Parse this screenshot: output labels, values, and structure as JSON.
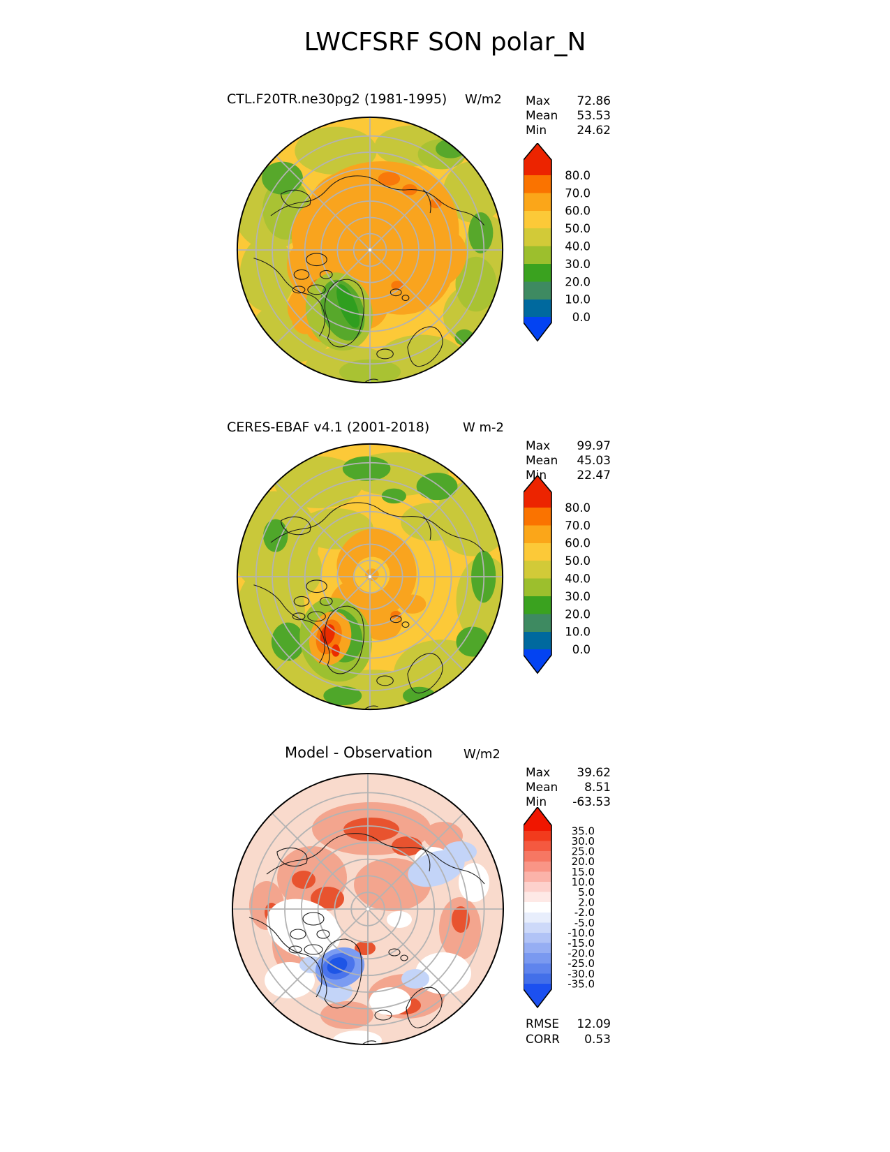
{
  "page_title": "LWCFSRF SON polar_N",
  "panels": [
    {
      "title": "CTL.F20TR.ne30pg2 (1981-1995)",
      "units": "W/m2",
      "stats": {
        "max_label": "Max",
        "max_value": "72.86",
        "mean_label": "Mean",
        "mean_value": "53.53",
        "min_label": "Min",
        "min_value": "24.62"
      },
      "colorbar": {
        "ticks": [
          "80.0",
          "70.0",
          "60.0",
          "50.0",
          "40.0",
          "30.0",
          "20.0",
          "10.0",
          "0.0"
        ],
        "colors": [
          "#ec2400",
          "#fa7300",
          "#fba619",
          "#fcc938",
          "#d2ca38",
          "#9cbf2d",
          "#3aa21f",
          "#3e8a61",
          "#00699e",
          "#0343f2"
        ]
      }
    },
    {
      "title": "CERES-EBAF v4.1 (2001-2018)",
      "units": "W m-2",
      "stats": {
        "max_label": "Max",
        "max_value": "99.97",
        "mean_label": "Mean",
        "mean_value": "45.03",
        "min_label": "Min",
        "min_value": "22.47"
      },
      "colorbar": {
        "ticks": [
          "80.0",
          "70.0",
          "60.0",
          "50.0",
          "40.0",
          "30.0",
          "20.0",
          "10.0",
          "0.0"
        ],
        "colors": [
          "#ec2400",
          "#fa7300",
          "#fba619",
          "#fcc938",
          "#d2ca38",
          "#9cbf2d",
          "#3aa21f",
          "#3e8a61",
          "#00699e",
          "#0343f2"
        ]
      }
    },
    {
      "title": "Model - Observation",
      "units": "W/m2",
      "stats": {
        "max_label": "Max",
        "max_value": "39.62",
        "mean_label": "Mean",
        "mean_value": "8.51",
        "min_label": "Min",
        "min_value": "-63.53"
      },
      "colorbar": {
        "ticks": [
          "35.0",
          "30.0",
          "25.0",
          "20.0",
          "15.0",
          "10.0",
          "5.0",
          "2.0",
          "-2.0",
          "-5.0",
          "-10.0",
          "-15.0",
          "-20.0",
          "-25.0",
          "-30.0",
          "-35.0"
        ],
        "colors": [
          "#f01600",
          "#f23b1d",
          "#f45940",
          "#f67763",
          "#f99586",
          "#fbb3a9",
          "#fdd1cc",
          "#fee9e6",
          "#ffffff",
          "#e8eefc",
          "#cdd9f9",
          "#b1c3f6",
          "#96aef3",
          "#7a99f0",
          "#5f84ed",
          "#436fe9",
          "#1c50f0"
        ]
      }
    }
  ],
  "metrics": {
    "rmse_label": "RMSE",
    "rmse_value": "12.09",
    "corr_label": "CORR",
    "corr_value": "0.53"
  },
  "chart_data": [
    {
      "type": "heatmap",
      "subtype": "filled-contour polar stereographic map",
      "variable": "LWCFSRF",
      "season": "SON",
      "region": "polar_N",
      "title": "CTL.F20TR.ne30pg2 (1981-1995)",
      "units": "W/m2",
      "stats": {
        "max": 72.86,
        "mean": 53.53,
        "min": 24.62
      },
      "contour_levels": [
        0,
        10,
        20,
        30,
        40,
        50,
        60,
        70,
        80
      ],
      "colorbar_extend": "both",
      "palette_low_to_high": [
        "#0343f2",
        "#00699e",
        "#3e8a61",
        "#3aa21f",
        "#9cbf2d",
        "#d2ca38",
        "#fcc938",
        "#fba619",
        "#fa7300",
        "#ec2400"
      ],
      "legend_position": "right",
      "grid": "polar graticule, gray"
    },
    {
      "type": "heatmap",
      "subtype": "filled-contour polar stereographic map",
      "variable": "LWCFSRF",
      "season": "SON",
      "region": "polar_N",
      "title": "CERES-EBAF v4.1 (2001-2018)",
      "units": "W m-2",
      "stats": {
        "max": 99.97,
        "mean": 45.03,
        "min": 22.47
      },
      "contour_levels": [
        0,
        10,
        20,
        30,
        40,
        50,
        60,
        70,
        80
      ],
      "colorbar_extend": "both",
      "palette_low_to_high": [
        "#0343f2",
        "#00699e",
        "#3e8a61",
        "#3aa21f",
        "#9cbf2d",
        "#d2ca38",
        "#fcc938",
        "#fba619",
        "#fa7300",
        "#ec2400"
      ],
      "legend_position": "right",
      "grid": "polar graticule, gray"
    },
    {
      "type": "heatmap",
      "subtype": "filled-contour polar stereographic difference map",
      "variable": "LWCFSRF",
      "season": "SON",
      "region": "polar_N",
      "title": "Model - Observation",
      "units": "W/m2",
      "stats": {
        "max": 39.62,
        "mean": 8.51,
        "min": -63.53
      },
      "metrics": {
        "rmse": 12.09,
        "corr": 0.53
      },
      "contour_levels": [
        -35,
        -30,
        -25,
        -20,
        -15,
        -10,
        -5,
        -2,
        2,
        5,
        10,
        15,
        20,
        25,
        30,
        35
      ],
      "colorbar_extend": "both",
      "palette_low_to_high": [
        "#1c50f0",
        "#436fe9",
        "#5f84ed",
        "#7a99f0",
        "#96aef3",
        "#b1c3f6",
        "#cdd9f9",
        "#e8eefc",
        "#ffffff",
        "#fee9e6",
        "#fdd1cc",
        "#fbb3a9",
        "#f99586",
        "#f67763",
        "#f45940",
        "#f23b1d",
        "#f01600"
      ],
      "legend_position": "right",
      "grid": "polar graticule, gray"
    }
  ]
}
